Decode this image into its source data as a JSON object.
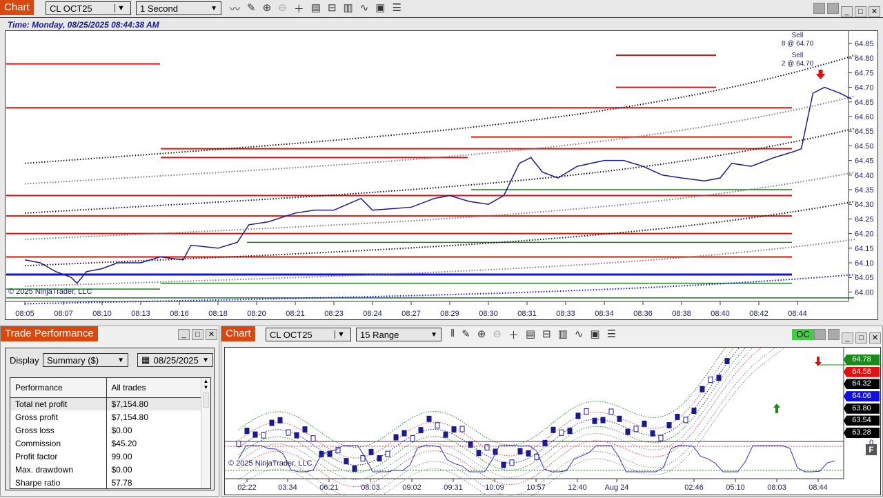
{
  "top_chart": {
    "tab": "Chart",
    "instrument": "CL OCT25",
    "interval": "1 Second",
    "time_label": "Time: Monday, 08/25/2025 08:44:38 AM",
    "copyright": "© 2025 NinjaTrader, LLC",
    "y_labels": [
      "64.85",
      "64.80",
      "64.75",
      "64.70",
      "64.65",
      "64.60",
      "64.55",
      "64.50",
      "64.45",
      "64.40",
      "64.35",
      "64.30",
      "64.25",
      "64.20",
      "64.15",
      "64.10",
      "64.05",
      "64.00"
    ],
    "x_labels": [
      "08:05",
      "08:07",
      "08:10",
      "08:13",
      "08:16",
      "08:18",
      "08:20",
      "08:21",
      "08:23",
      "08:24",
      "08:27",
      "08:29",
      "08:30",
      "08:31",
      "08:33",
      "08:34",
      "08:36",
      "08:38",
      "08:40",
      "08:42",
      "08:44"
    ],
    "annotations": [
      {
        "title": "Sell",
        "text": "8 @ 64.70"
      },
      {
        "title": "Sell",
        "text": "2 @ 64.70"
      }
    ],
    "price_series": [
      [
        0,
        64.11
      ],
      [
        0.4,
        64.1
      ],
      [
        0.8,
        64.07
      ],
      [
        1.2,
        64.05
      ],
      [
        1.35,
        64.03
      ],
      [
        1.6,
        64.07
      ],
      [
        2,
        64.08
      ],
      [
        2.4,
        64.1
      ],
      [
        3,
        64.1
      ],
      [
        3.5,
        64.12
      ],
      [
        4.1,
        64.11
      ],
      [
        4.3,
        64.16
      ],
      [
        5,
        64.15
      ],
      [
        5.5,
        64.17
      ],
      [
        5.8,
        64.23
      ],
      [
        6.3,
        64.24
      ],
      [
        7,
        64.27
      ],
      [
        7.5,
        64.28
      ],
      [
        8,
        64.28
      ],
      [
        8.7,
        64.32
      ],
      [
        9,
        64.28
      ],
      [
        10,
        64.29
      ],
      [
        10.6,
        64.32
      ],
      [
        11,
        64.33
      ],
      [
        11.5,
        64.31
      ],
      [
        12,
        64.3
      ],
      [
        12.4,
        64.33
      ],
      [
        12.8,
        64.44
      ],
      [
        13.1,
        64.46
      ],
      [
        13.4,
        64.41
      ],
      [
        13.8,
        64.39
      ],
      [
        14.3,
        64.43
      ],
      [
        15,
        64.45
      ],
      [
        15.5,
        64.45
      ],
      [
        16,
        64.43
      ],
      [
        16.5,
        64.4
      ],
      [
        17,
        64.39
      ],
      [
        17.6,
        64.38
      ],
      [
        18,
        64.39
      ],
      [
        18.3,
        64.44
      ],
      [
        18.8,
        64.43
      ],
      [
        19.4,
        64.46
      ],
      [
        19.9,
        64.48
      ],
      [
        20.1,
        64.49
      ],
      [
        20.4,
        64.68
      ],
      [
        20.7,
        64.7
      ],
      [
        21.1,
        64.68
      ],
      [
        21.4,
        64.66
      ]
    ]
  },
  "trade_performance": {
    "tab": "Trade Performance",
    "display_label": "Display",
    "display_value": "Summary ($)",
    "date": "08/25/2025",
    "headers": [
      "Performance",
      "All trades"
    ],
    "rows": [
      [
        "Total net profit",
        "$7,154.80"
      ],
      [
        "Gross profit",
        "$7,154.80"
      ],
      [
        "Gross loss",
        "$0.00"
      ],
      [
        "Commission",
        "$45.20"
      ],
      [
        "Profit factor",
        "99.00"
      ],
      [
        "Max. drawdown",
        "$0.00"
      ],
      [
        "Sharpe ratio",
        "57.78"
      ]
    ]
  },
  "bottom_chart": {
    "tab": "Chart",
    "instrument": "CL OCT25",
    "interval": "15 Range",
    "status": "OC",
    "copyright": "© 2025 NinjaTrader, LLC",
    "indicator_zero": "0",
    "f_button": "F",
    "x_labels": [
      "02:22",
      "03:34",
      "06:21",
      "08:03",
      "09:02",
      "09:31",
      "10:09",
      "10:57",
      "12:40",
      "Aug 24",
      "02:46",
      "05:10",
      "08:03",
      "08:44"
    ],
    "price_labels": [
      {
        "v": "64.78",
        "c": "#1a8a1a"
      },
      {
        "v": "64.58",
        "c": "#e01010"
      },
      {
        "v": "64.32",
        "c": "#000000"
      },
      {
        "v": "64.06",
        "c": "#1010e0"
      },
      {
        "v": "63.80",
        "c": "#000000"
      },
      {
        "v": "63.54",
        "c": "#000000"
      },
      {
        "v": "63.28",
        "c": "#000000"
      }
    ]
  },
  "colors": {
    "accent": "#d9480f",
    "price": "#1a1a8c",
    "resistance": "#e01010",
    "support": "#1a7a1a"
  }
}
